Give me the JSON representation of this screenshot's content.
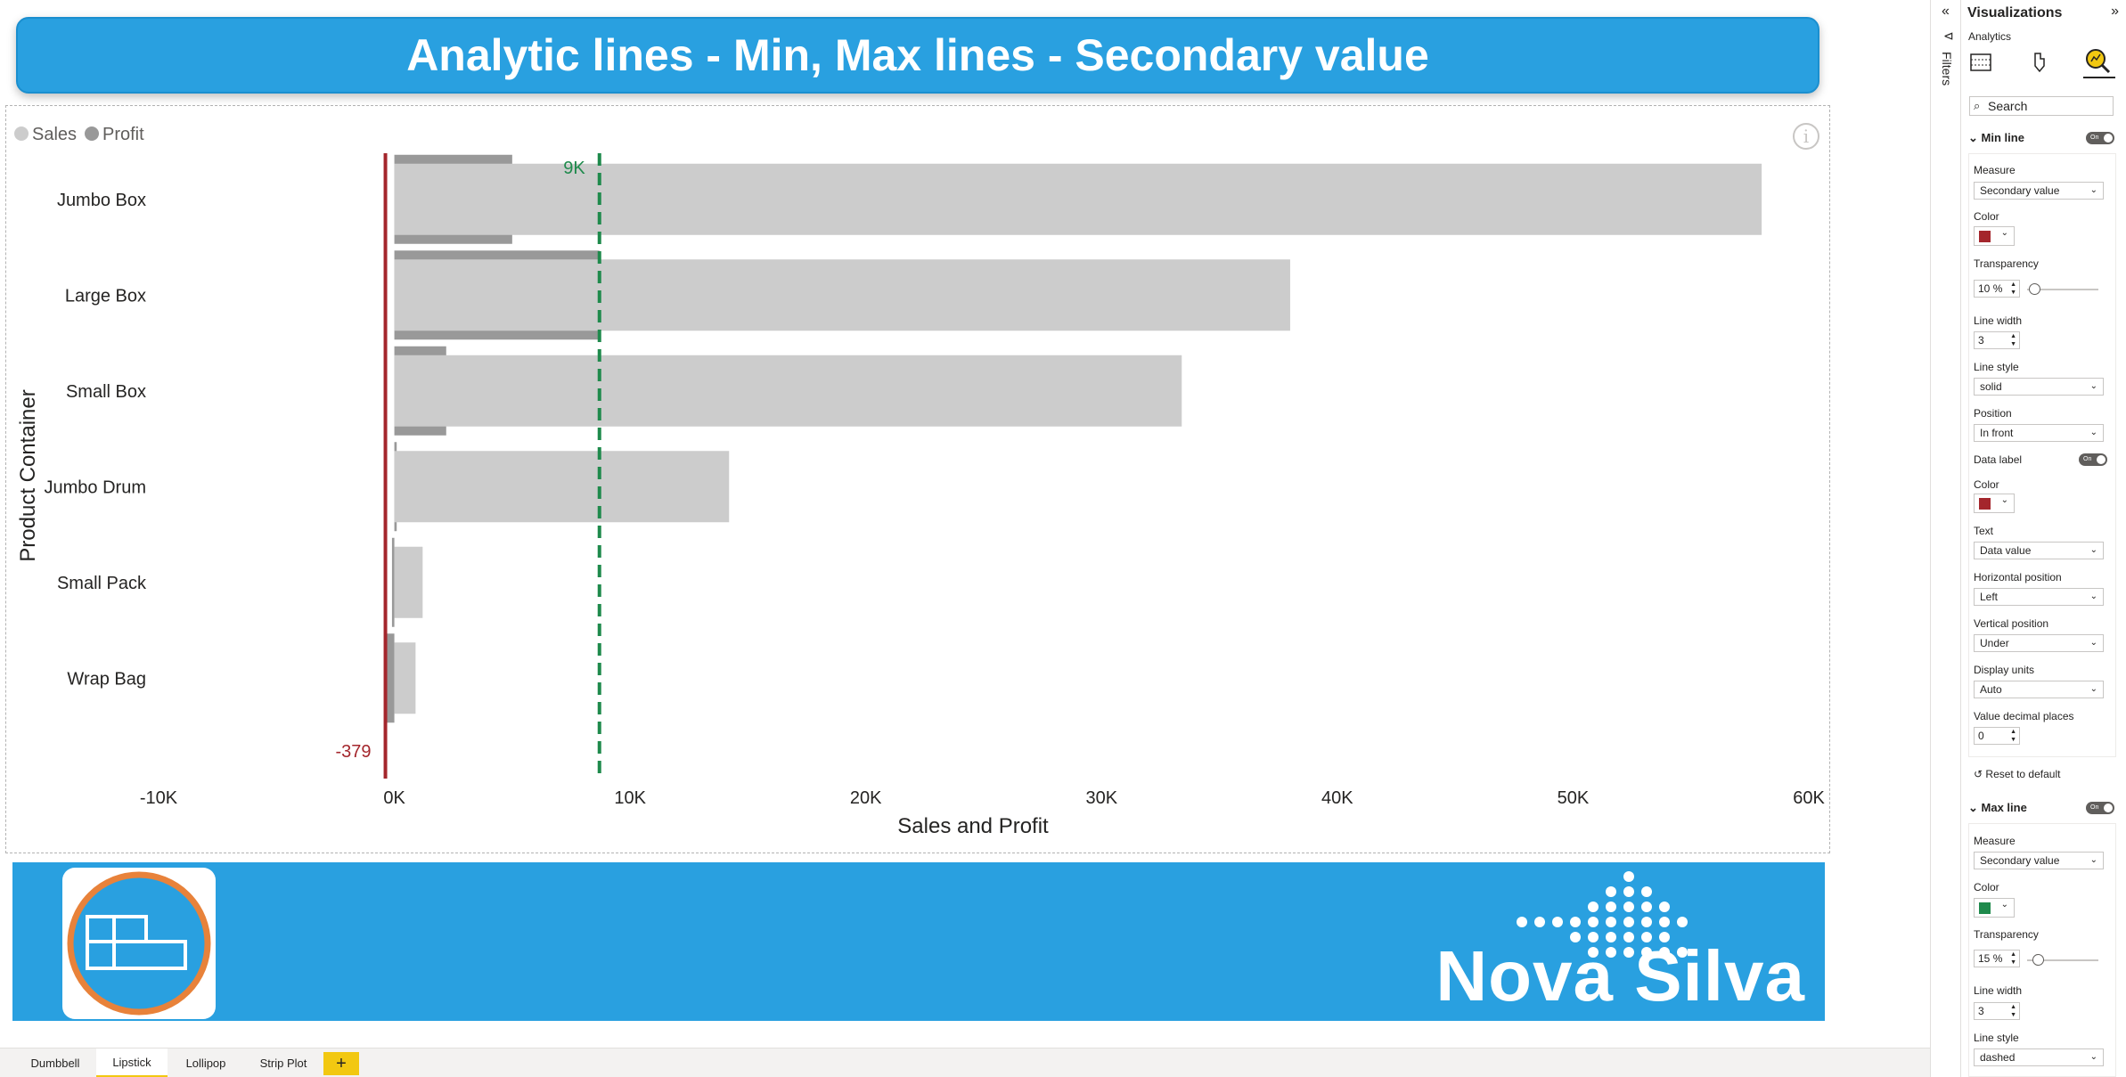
{
  "report": {
    "title": "Analytic lines - Min, Max lines - Secondary value"
  },
  "chart_data": {
    "type": "bar",
    "orientation": "horizontal",
    "legend_position": "top-left",
    "legend": [
      "Sales",
      "Profit"
    ],
    "categories": [
      "Jumbo Box",
      "Large Box",
      "Small Box",
      "Jumbo Drum",
      "Small Pack",
      "Wrap Bag"
    ],
    "series": [
      {
        "name": "Sales",
        "values": [
          58000,
          38000,
          33400,
          14200,
          1200,
          900
        ],
        "color": "#cccccc"
      },
      {
        "name": "Profit",
        "values": [
          5000,
          8700,
          2200,
          100,
          -100,
          -379
        ],
        "color": "#999999"
      }
    ],
    "xlabel": "Sales and Profit",
    "ylabel": "Product Container",
    "xlim": [
      -10000,
      60000
    ],
    "x_ticks": [
      "-10K",
      "0K",
      "10K",
      "20K",
      "30K",
      "40K",
      "50K",
      "60K"
    ],
    "min_line": {
      "value": -379,
      "label": "-379",
      "color": "#a4262c",
      "style": "solid"
    },
    "max_line": {
      "value": 8700,
      "label": "9K",
      "color": "#1f8a4c",
      "style": "dashed"
    }
  },
  "footer": {
    "brand": "Nova Silva"
  },
  "tabs": [
    {
      "label": "Dumbbell",
      "active": false
    },
    {
      "label": "Lipstick",
      "active": true
    },
    {
      "label": "Lollipop",
      "active": false
    },
    {
      "label": "Strip Plot",
      "active": false
    }
  ],
  "add_tab_label": "+",
  "filters_label": "Filters",
  "pane": {
    "title": "Visualizations",
    "subtitle": "Analytics",
    "collapse_icon": "chevron-right-double",
    "search_placeholder": "Search",
    "min_line": {
      "header": "Min line",
      "toggle": "On",
      "measure_label": "Measure",
      "measure_value": "Secondary value",
      "color_label": "Color",
      "color": "#a4262c",
      "transparency_label": "Transparency",
      "transparency_value": "10",
      "transparency_unit": "%",
      "transparency_level": 0.1,
      "line_width_label": "Line width",
      "line_width_value": "3",
      "line_style_label": "Line style",
      "line_style_value": "solid",
      "position_label": "Position",
      "position_value": "In front",
      "data_label_label": "Data label",
      "data_label_toggle": "On",
      "dl_color_label": "Color",
      "dl_color": "#a4262c",
      "text_label": "Text",
      "text_value": "Data value",
      "hpos_label": "Horizontal position",
      "hpos_value": "Left",
      "vpos_label": "Vertical position",
      "vpos_value": "Under",
      "units_label": "Display units",
      "units_value": "Auto",
      "decimals_label": "Value decimal places",
      "decimals_value": "0",
      "reset_label": "Reset to default"
    },
    "max_line": {
      "header": "Max line",
      "toggle": "On",
      "measure_label": "Measure",
      "measure_value": "Secondary value",
      "color_label": "Color",
      "color": "#1f8a4c",
      "transparency_label": "Transparency",
      "transparency_value": "15",
      "transparency_unit": "%",
      "transparency_level": 0.15,
      "line_width_label": "Line width",
      "line_width_value": "3",
      "line_style_label": "Line style",
      "line_style_value": "dashed"
    }
  }
}
